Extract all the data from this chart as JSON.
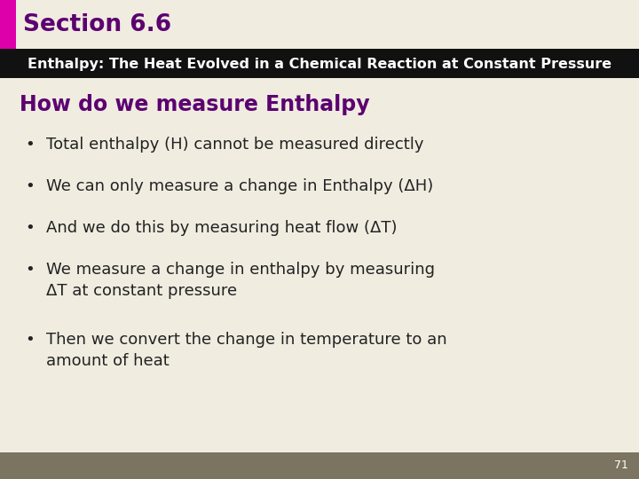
{
  "bg_color": "#f0ece0",
  "section_label": "Section 6.6",
  "section_label_color": "#5c0070",
  "accent_bar_color": "#dd00aa",
  "header_bg_color": "#111111",
  "header_text": "Enthalpy: The Heat Evolved in a Chemical Reaction at Constant Pressure",
  "header_text_color": "#ffffff",
  "slide_title": "How do we measure Enthalpy",
  "slide_title_color": "#5c0070",
  "bullet_points": [
    "Total enthalpy (H) cannot be measured directly",
    "We can only measure a change in Enthalpy (ΔH)",
    "And we do this by measuring heat flow (ΔT)",
    "We measure a change in enthalpy by measuring\nΔT at constant pressure",
    "Then we convert the change in temperature to an\namount of heat"
  ],
  "bullet_color": "#222222",
  "footer_bg_color": "#7a7460",
  "footer_text": "71",
  "footer_text_color": "#ffffff"
}
